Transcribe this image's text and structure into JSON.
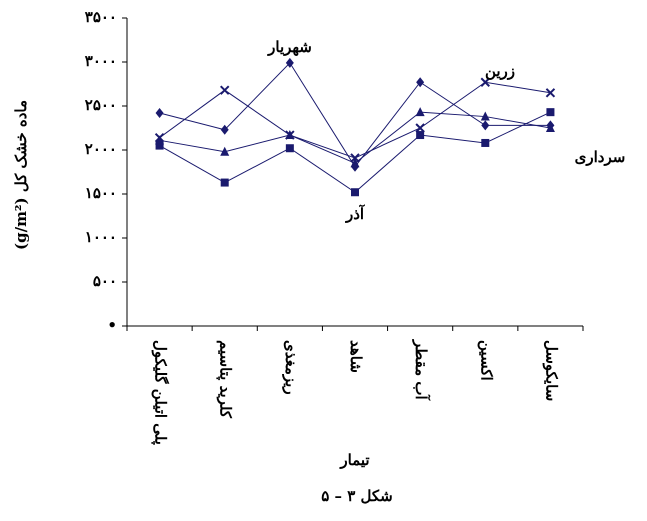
{
  "chart_data": {
    "type": "line",
    "y_label": "(g/m²) ماده خشک کل",
    "x_label": "تیمار",
    "caption": "شکل ۳ – ۵",
    "categories": [
      "پلی اتیلن گلیکول",
      "کلرید پتاسیم",
      "ریزمغذی",
      "شاهد",
      "آب مقطر",
      "اکسین",
      "سایکوسل"
    ],
    "series": [
      {
        "name": "شهریار",
        "color": "#1a1a6e",
        "marker": "diamond",
        "values": [
          2420,
          2230,
          2990,
          1810,
          2770,
          2280,
          2280
        ]
      },
      {
        "name": "زرین",
        "color": "#1a1a6e",
        "marker": "x",
        "values": [
          2140,
          2680,
          2170,
          1910,
          2250,
          2770,
          2650
        ]
      },
      {
        "name": "سرداری",
        "color": "#1a1a6e",
        "marker": "triangle",
        "values": [
          2110,
          1980,
          2170,
          1850,
          2430,
          2380,
          2250
        ]
      },
      {
        "name": "آذر",
        "color": "#1a1a6e",
        "marker": "square",
        "values": [
          2050,
          1630,
          2020,
          1520,
          2170,
          2080,
          2430
        ]
      }
    ],
    "ylim": [
      0,
      3500
    ],
    "yticks": [
      {
        "value": 0,
        "label": "•"
      },
      {
        "value": 500,
        "label": "۵۰۰"
      },
      {
        "value": 1000,
        "label": "۱۰۰۰"
      },
      {
        "value": 1500,
        "label": "۱۵۰۰"
      },
      {
        "value": 2000,
        "label": "۲۰۰۰"
      },
      {
        "value": 2500,
        "label": "۲۵۰۰"
      },
      {
        "value": 3000,
        "label": "۳۰۰۰"
      },
      {
        "value": 3500,
        "label": "۳۵۰۰"
      }
    ]
  }
}
